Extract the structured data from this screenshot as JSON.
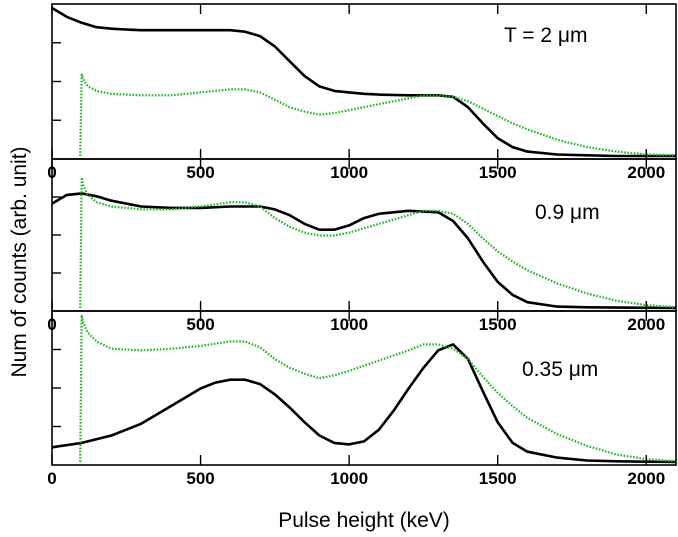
{
  "chart_data": {
    "type": "line",
    "xlabel": "Pulse height (keV)",
    "ylabel": "Num of counts (arb. unit)",
    "xlim": [
      0,
      2100
    ],
    "x_ticks": [
      0,
      500,
      1000,
      1500,
      2000
    ],
    "colors": {
      "simulation": "#000000",
      "measurement": "#22b222"
    },
    "panels": [
      {
        "label": "T  = 2 μm",
        "ylim": [
          0,
          1.0
        ],
        "series": [
          {
            "style": "solid",
            "color": "#000000",
            "x": [
              0,
              50,
              100,
              150,
              200,
              250,
              300,
              400,
              500,
              600,
              650,
              700,
              750,
              800,
              850,
              900,
              950,
              1000,
              1050,
              1100,
              1200,
              1300,
              1350,
              1400,
              1450,
              1500,
              1550,
              1600,
              1700,
              1800,
              1900,
              2000,
              2100
            ],
            "y": [
              1.0,
              0.94,
              0.9,
              0.87,
              0.86,
              0.855,
              0.85,
              0.85,
              0.85,
              0.85,
              0.84,
              0.81,
              0.74,
              0.64,
              0.54,
              0.47,
              0.44,
              0.43,
              0.42,
              0.415,
              0.41,
              0.41,
              0.4,
              0.33,
              0.22,
              0.12,
              0.06,
              0.03,
              0.01,
              0.005,
              0,
              0,
              0
            ]
          },
          {
            "style": "dotted",
            "color": "#22b222",
            "x": [
              95,
              100,
              105,
              120,
              150,
              200,
              300,
              400,
              500,
              600,
              650,
              700,
              750,
              800,
              850,
              900,
              950,
              1000,
              1100,
              1200,
              1250,
              1300,
              1350,
              1400,
              1450,
              1500,
              1550,
              1600,
              1700,
              1800,
              1900,
              2000,
              2100
            ],
            "y": [
              0,
              0.55,
              0.52,
              0.47,
              0.44,
              0.42,
              0.41,
              0.41,
              0.43,
              0.45,
              0.45,
              0.43,
              0.38,
              0.33,
              0.3,
              0.28,
              0.29,
              0.31,
              0.35,
              0.39,
              0.41,
              0.41,
              0.4,
              0.37,
              0.32,
              0.27,
              0.22,
              0.18,
              0.11,
              0.06,
              0.03,
              0.01,
              0.005
            ]
          }
        ]
      },
      {
        "label": "0.9 μm",
        "ylim": [
          0,
          1.0
        ],
        "series": [
          {
            "style": "solid",
            "color": "#000000",
            "x": [
              0,
              50,
              100,
              150,
              200,
              300,
              400,
              500,
              600,
              650,
              700,
              750,
              800,
              850,
              900,
              950,
              1000,
              1050,
              1100,
              1200,
              1300,
              1350,
              1400,
              1450,
              1500,
              1550,
              1600,
              1700,
              1800,
              2100
            ],
            "y": [
              0.72,
              0.78,
              0.79,
              0.77,
              0.74,
              0.7,
              0.69,
              0.69,
              0.7,
              0.7,
              0.7,
              0.68,
              0.64,
              0.58,
              0.54,
              0.54,
              0.57,
              0.62,
              0.65,
              0.67,
              0.66,
              0.6,
              0.48,
              0.32,
              0.18,
              0.09,
              0.04,
              0.01,
              0.005,
              0
            ]
          },
          {
            "style": "dotted",
            "color": "#22b222",
            "x": [
              95,
              100,
              105,
              120,
              150,
              200,
              300,
              400,
              500,
              600,
              650,
              700,
              750,
              800,
              850,
              900,
              950,
              1000,
              1100,
              1200,
              1250,
              1300,
              1350,
              1400,
              1450,
              1500,
              1550,
              1600,
              1700,
              1800,
              1900,
              2000,
              2100
            ],
            "y": [
              0,
              0.9,
              0.85,
              0.78,
              0.73,
              0.7,
              0.68,
              0.68,
              0.7,
              0.73,
              0.73,
              0.7,
              0.62,
              0.56,
              0.52,
              0.5,
              0.5,
              0.52,
              0.58,
              0.64,
              0.67,
              0.67,
              0.65,
              0.58,
              0.48,
              0.39,
              0.32,
              0.26,
              0.17,
              0.1,
              0.05,
              0.02,
              0.005
            ]
          }
        ]
      },
      {
        "label": "0.35 μm",
        "ylim": [
          0,
          1.0
        ],
        "series": [
          {
            "style": "solid",
            "color": "#000000",
            "x": [
              0,
              100,
              200,
              300,
              400,
              500,
              550,
              600,
              650,
              700,
              750,
              800,
              850,
              900,
              950,
              1000,
              1050,
              1100,
              1150,
              1200,
              1250,
              1300,
              1350,
              1400,
              1450,
              1500,
              1550,
              1600,
              1700,
              1800,
              1900,
              2100
            ],
            "y": [
              0.1,
              0.13,
              0.18,
              0.26,
              0.38,
              0.5,
              0.54,
              0.56,
              0.56,
              0.53,
              0.46,
              0.37,
              0.27,
              0.18,
              0.13,
              0.12,
              0.14,
              0.22,
              0.35,
              0.5,
              0.64,
              0.76,
              0.8,
              0.7,
              0.48,
              0.27,
              0.13,
              0.07,
              0.03,
              0.01,
              0.005,
              0
            ]
          },
          {
            "style": "dotted",
            "color": "#22b222",
            "x": [
              95,
              100,
              105,
              120,
              150,
              200,
              300,
              400,
              500,
              600,
              650,
              700,
              750,
              800,
              850,
              900,
              950,
              1000,
              1100,
              1200,
              1250,
              1300,
              1350,
              1400,
              1450,
              1500,
              1550,
              1600,
              1700,
              1800,
              1900,
              2000,
              2100
            ],
            "y": [
              0,
              1.0,
              0.95,
              0.88,
              0.82,
              0.77,
              0.76,
              0.77,
              0.79,
              0.82,
              0.82,
              0.78,
              0.7,
              0.64,
              0.6,
              0.57,
              0.59,
              0.62,
              0.69,
              0.76,
              0.8,
              0.8,
              0.77,
              0.7,
              0.58,
              0.47,
              0.38,
              0.3,
              0.19,
              0.11,
              0.05,
              0.02,
              0.005
            ]
          }
        ]
      }
    ]
  }
}
